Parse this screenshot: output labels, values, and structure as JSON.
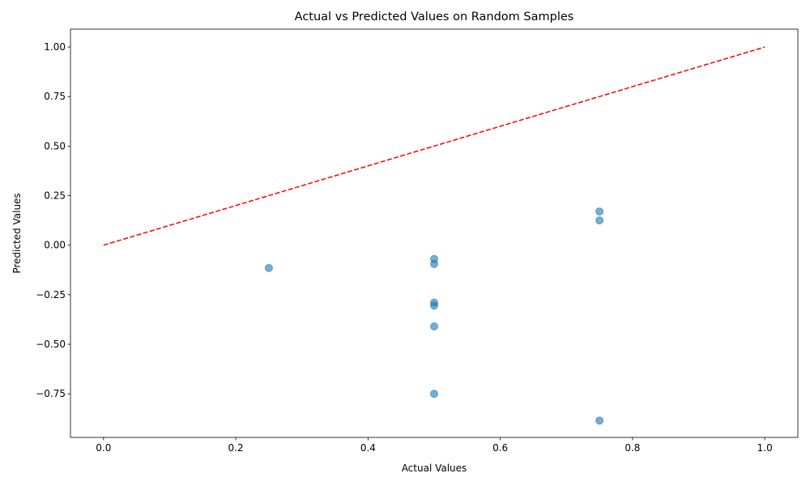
{
  "chart_data": {
    "type": "scatter",
    "title": "Actual vs Predicted Values on Random Samples",
    "xlabel": "Actual Values",
    "ylabel": "Predicted Values",
    "xlim": [
      -0.05,
      1.05
    ],
    "ylim": [
      -0.97,
      1.09
    ],
    "xticks": [
      0.0,
      0.2,
      0.4,
      0.6,
      0.8,
      1.0
    ],
    "xtick_labels": [
      "0.0",
      "0.2",
      "0.4",
      "0.6",
      "0.8",
      "1.0"
    ],
    "yticks": [
      -0.75,
      -0.5,
      -0.25,
      0.0,
      0.25,
      0.5,
      0.75,
      1.0
    ],
    "ytick_labels": [
      "−0.75",
      "−0.50",
      "−0.25",
      "0.00",
      "0.25",
      "0.50",
      "0.75",
      "1.00"
    ],
    "grid": false,
    "points": [
      {
        "x": 0.25,
        "y": -0.115
      },
      {
        "x": 0.5,
        "y": -0.07
      },
      {
        "x": 0.5,
        "y": -0.095
      },
      {
        "x": 0.5,
        "y": -0.29
      },
      {
        "x": 0.5,
        "y": -0.305
      },
      {
        "x": 0.5,
        "y": -0.41
      },
      {
        "x": 0.5,
        "y": -0.75
      },
      {
        "x": 0.75,
        "y": 0.17
      },
      {
        "x": 0.75,
        "y": 0.125
      },
      {
        "x": 0.75,
        "y": -0.885
      }
    ],
    "reference_line": {
      "x": [
        0.0,
        1.0
      ],
      "y": [
        0.0,
        1.0
      ],
      "style": "dashed",
      "color": "#ff0000"
    },
    "marker_color": "#1f77b4",
    "marker_alpha": 0.6
  }
}
